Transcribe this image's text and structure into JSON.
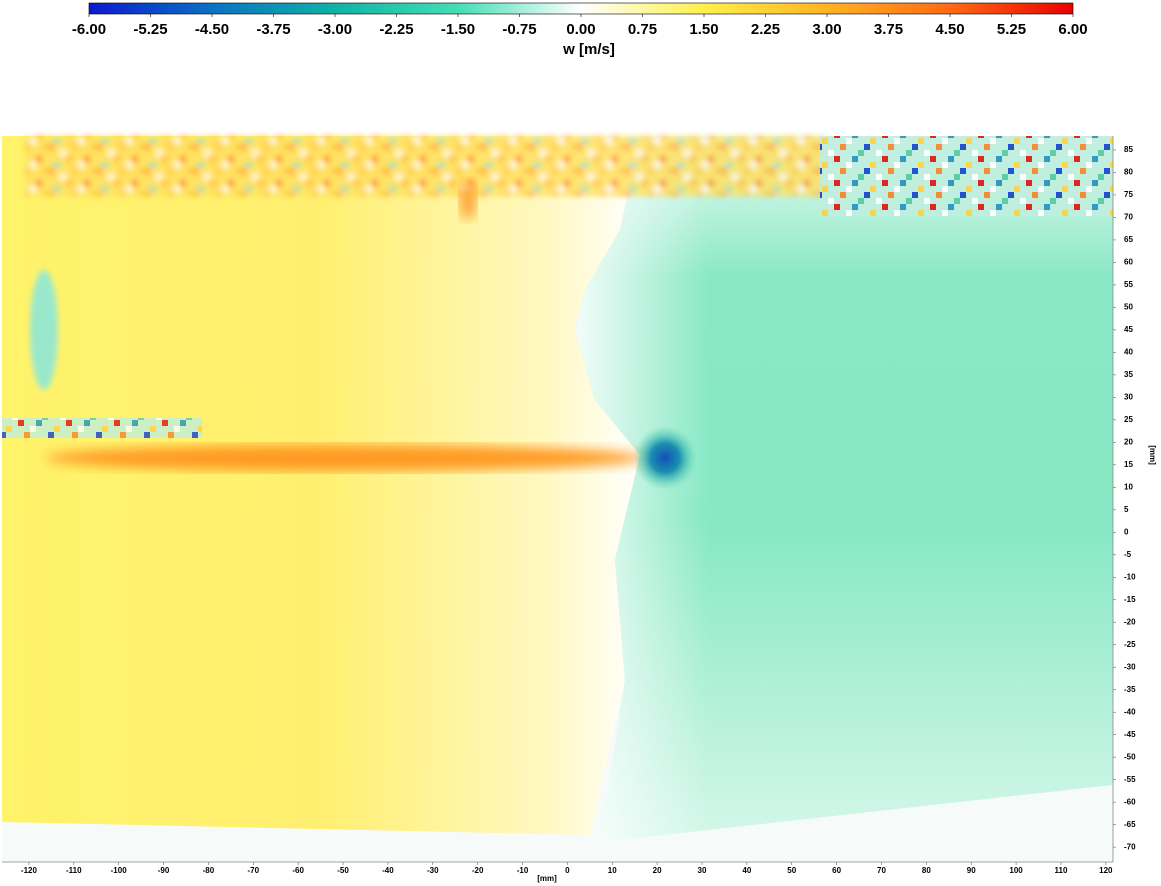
{
  "chart_data": {
    "type": "heatmap",
    "colorbar_label": "w [m/s]",
    "x_label": "[mm]",
    "y_label": "[mm]",
    "colormap": [
      "#0a1ad0",
      "#0a72c4",
      "#0fb3a6",
      "#44dfb4",
      "#ffffff",
      "#fff04a",
      "#ffb323",
      "#ff6a12",
      "#e80000"
    ],
    "clim": [
      -6,
      6
    ],
    "cticks": [
      {
        "value": -6,
        "label": "-6.00"
      },
      {
        "value": -5.25,
        "label": "-5.25"
      },
      {
        "value": -4.5,
        "label": "-4.50"
      },
      {
        "value": -3.75,
        "label": "-3.75"
      },
      {
        "value": -3,
        "label": "-3.00"
      },
      {
        "value": -2.25,
        "label": "-2.25"
      },
      {
        "value": -1.5,
        "label": "-1.50"
      },
      {
        "value": -0.75,
        "label": "-0.75"
      },
      {
        "value": 0,
        "label": "0.00"
      },
      {
        "value": 0.75,
        "label": "0.75"
      },
      {
        "value": 1.5,
        "label": "1.50"
      },
      {
        "value": 2.25,
        "label": "2.25"
      },
      {
        "value": 3,
        "label": "3.00"
      },
      {
        "value": 3.75,
        "label": "3.75"
      },
      {
        "value": 4.5,
        "label": "4.50"
      },
      {
        "value": 5.25,
        "label": "5.25"
      },
      {
        "value": 6,
        "label": "6.00"
      }
    ],
    "xlim": [
      -126,
      121.6
    ],
    "xticks": [
      -120,
      -110,
      -100,
      -90,
      -80,
      -70,
      -60,
      -50,
      -40,
      -30,
      -20,
      -10,
      0,
      10,
      20,
      30,
      40,
      50,
      60,
      70,
      80,
      90,
      100,
      110,
      120
    ],
    "ylim": [
      -73.3,
      88.1
    ],
    "yticks": [
      85,
      80,
      75,
      70,
      65,
      60,
      55,
      50,
      45,
      40,
      35,
      30,
      25,
      20,
      15,
      10,
      5,
      0,
      -5,
      -10,
      -15,
      -20,
      -25,
      -30,
      -35,
      -40,
      -45,
      -50,
      -55,
      -60,
      -65,
      -70
    ]
  }
}
